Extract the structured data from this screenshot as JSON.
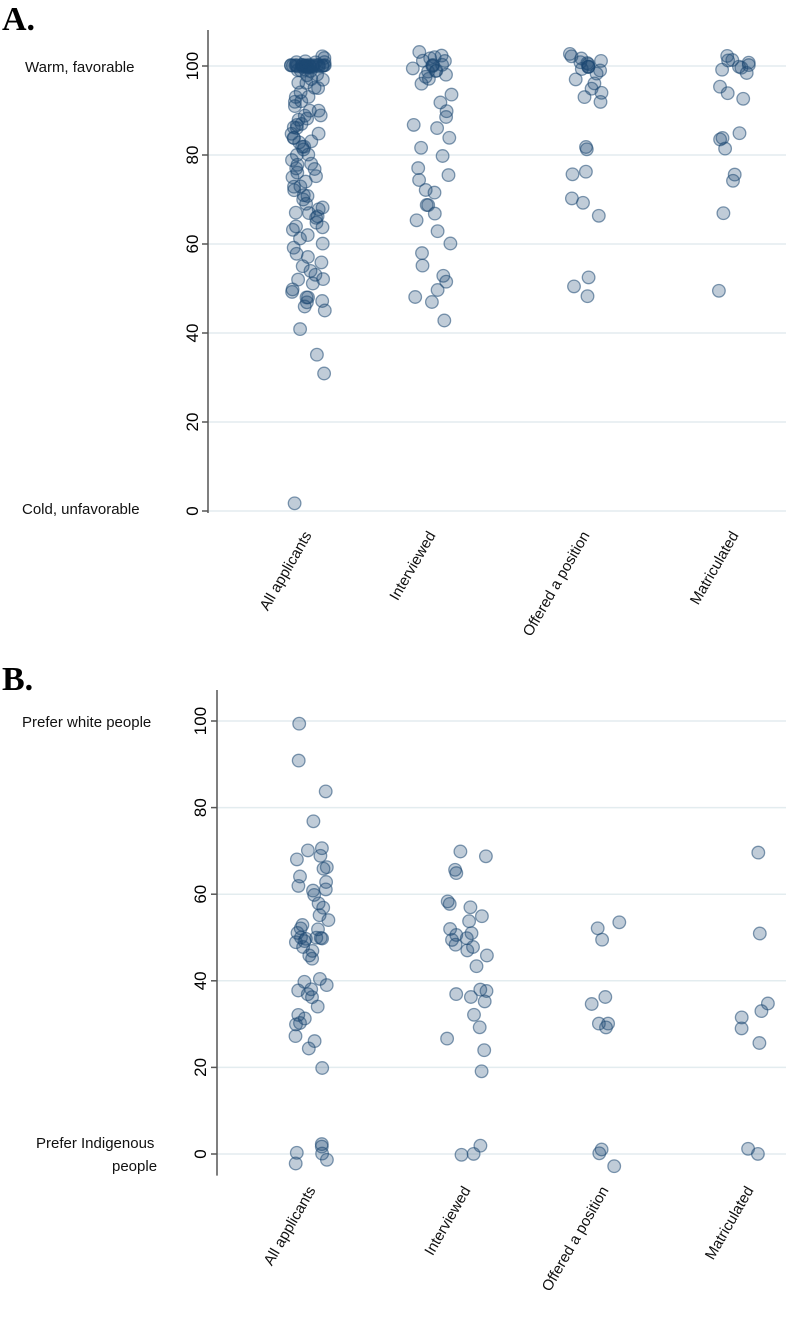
{
  "chart_data": [
    {
      "type": "scatter",
      "panel_label": "A.",
      "title": "",
      "ylim": [
        0,
        105
      ],
      "yticks": [
        0,
        20,
        40,
        60,
        80,
        100
      ],
      "ytick_labels": [
        "0",
        "20",
        "40",
        "60",
        "80",
        "100"
      ],
      "grid": true,
      "side_labels": {
        "top": "Warm, favorable",
        "bottom": "Cold, unfavorable"
      },
      "categories": [
        "All applicants",
        "Interviewed",
        "Offered a position",
        "Matriculated"
      ],
      "series": [
        {
          "name": "All applicants",
          "values": [
            100,
            100,
            100,
            100,
            100,
            100,
            100,
            100,
            100,
            100,
            100,
            100,
            100,
            100,
            100,
            100,
            100,
            100,
            100,
            100,
            100,
            100,
            100,
            100,
            100,
            100,
            100,
            100,
            101,
            101,
            101,
            101,
            99,
            99,
            99,
            99,
            102,
            102,
            98,
            98,
            97,
            97,
            96,
            96,
            95,
            95,
            94,
            93,
            93,
            92,
            92,
            91,
            90,
            90,
            89,
            89,
            88,
            88,
            87,
            87,
            86,
            86,
            85,
            85,
            84,
            84,
            83,
            83,
            82,
            82,
            81,
            80,
            80,
            79,
            78,
            78,
            77,
            77,
            76,
            75,
            75,
            74,
            73,
            73,
            72,
            71,
            71,
            70,
            69,
            68,
            68,
            67,
            67,
            66,
            66,
            65,
            64,
            64,
            63,
            62,
            61,
            60,
            59,
            58,
            57,
            56,
            55,
            54,
            53,
            52,
            52,
            51,
            50,
            49,
            48,
            48,
            47,
            47,
            46,
            45,
            40.8,
            35.2,
            31,
            1.5
          ]
        },
        {
          "name": "Interviewed",
          "values": [
            103,
            102.5,
            102,
            101.5,
            101,
            101,
            100.5,
            100,
            100,
            100,
            99.5,
            99,
            99,
            98.5,
            98,
            97.5,
            97,
            96,
            93.5,
            92,
            90,
            88.5,
            87,
            86,
            84,
            81.6,
            80,
            77,
            75.5,
            74.4,
            72,
            71.5,
            69,
            68.5,
            67,
            65.4,
            63,
            60,
            58,
            55,
            53,
            51.5,
            49.7,
            48,
            46.8,
            43
          ]
        },
        {
          "name": "Offered a position",
          "values": [
            102.5,
            102,
            101.5,
            101,
            101,
            100.5,
            100.5,
            100,
            100,
            100,
            99.5,
            99,
            98.5,
            97,
            96,
            95,
            94,
            93,
            91.7,
            82,
            81.5,
            76.3,
            75.8,
            70.3,
            69.4,
            66.5,
            52.4,
            50.3,
            48.5
          ]
        },
        {
          "name": "Matriculated",
          "values": [
            102.5,
            101.5,
            101,
            100.5,
            100,
            100,
            99.5,
            99,
            98.5,
            95.3,
            94,
            92.8,
            85,
            84,
            83.5,
            81.6,
            75.5,
            74.4,
            67,
            49.7
          ]
        }
      ]
    },
    {
      "type": "scatter",
      "panel_label": "B.",
      "title": "",
      "ylim": [
        -5,
        107
      ],
      "yticks": [
        0,
        20,
        40,
        60,
        80,
        100
      ],
      "ytick_labels": [
        "0",
        "20",
        "40",
        "60",
        "80",
        "100"
      ],
      "grid": true,
      "side_labels": {
        "top": "Prefer white people",
        "bottom_line1": "Prefer Indigenous",
        "bottom_line2": "people"
      },
      "categories": [
        "All applicants",
        "Interviewed",
        "Offered a position",
        "Matriculated"
      ],
      "series": [
        {
          "name": "All applicants",
          "values": [
            99.5,
            91,
            84,
            77,
            70.5,
            70,
            69,
            68,
            66,
            66,
            64,
            63,
            62,
            61,
            61,
            60,
            58,
            57,
            55,
            54,
            53,
            52,
            52,
            51,
            50,
            50,
            50,
            50,
            49.5,
            49,
            49,
            48,
            47,
            46,
            45,
            40.5,
            40,
            39,
            38,
            38,
            37,
            36,
            34,
            32,
            31.5,
            30.5,
            30,
            27,
            26,
            24.5,
            20,
            2.5,
            1.5,
            0.5,
            0,
            -1.5,
            -2
          ]
        },
        {
          "name": "Interviewed",
          "values": [
            70,
            68.5,
            65.5,
            65,
            58.5,
            58,
            57,
            55,
            54,
            52,
            51,
            50.5,
            50,
            49.5,
            48.5,
            48,
            47,
            46,
            43.5,
            38,
            37.5,
            37,
            36,
            35,
            32,
            29.5,
            26.5,
            24,
            19,
            2,
            0,
            0
          ]
        },
        {
          "name": "Offered a position",
          "values": [
            53.5,
            52,
            49.5,
            36.5,
            34.5,
            30,
            30,
            29,
            1,
            0,
            -3
          ]
        },
        {
          "name": "Matriculated",
          "values": [
            69.5,
            51,
            35,
            33,
            31.5,
            29,
            25.5,
            1,
            0
          ]
        }
      ]
    }
  ]
}
